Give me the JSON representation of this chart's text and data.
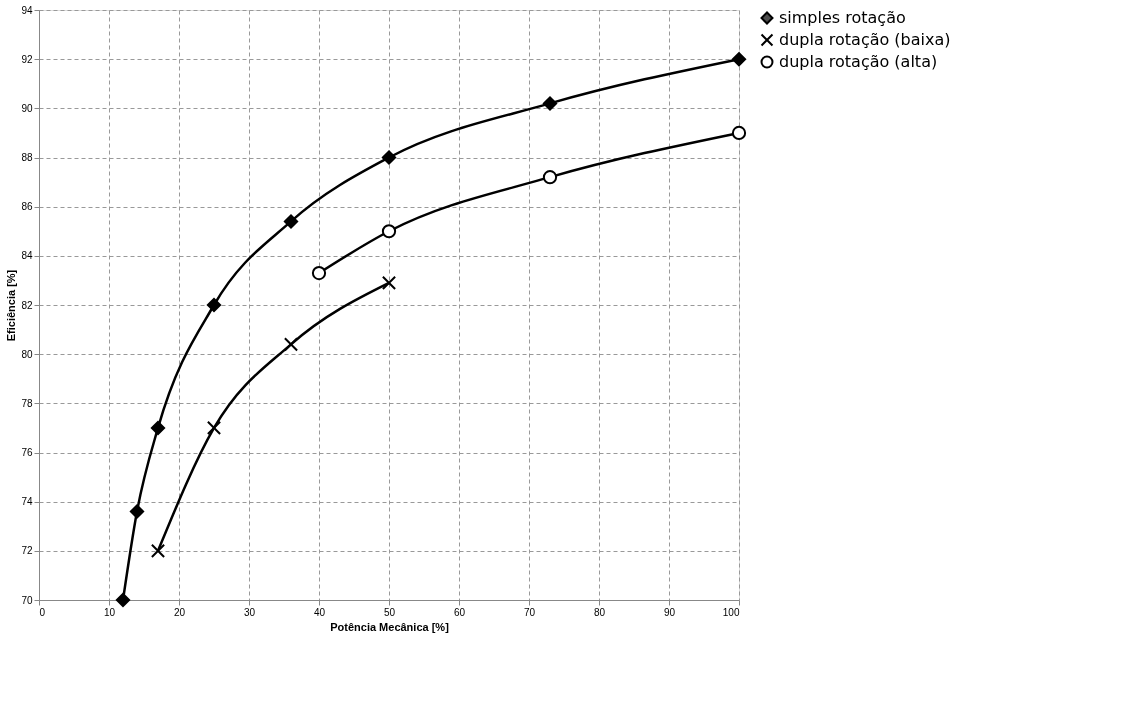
{
  "chart_data": {
    "type": "line",
    "xlabel": "Potência Mecânica [%]",
    "ylabel": "Eficiência [%]",
    "xlim": [
      0,
      100
    ],
    "xticks": [
      0,
      10,
      20,
      30,
      40,
      50,
      60,
      70,
      80,
      90,
      100
    ],
    "ylim": [
      70,
      94
    ],
    "yticks": [
      70,
      72,
      74,
      76,
      78,
      80,
      82,
      84,
      86,
      88,
      90,
      92,
      94
    ],
    "grid": true,
    "legend": "right",
    "line_style": "solid",
    "series": [
      {
        "name": "simples rotação",
        "color": "#000000",
        "marker": "diamond",
        "x": [
          12,
          14,
          17,
          25,
          36,
          50,
          73,
          100
        ],
        "values": [
          70,
          73.6,
          77,
          82,
          85.4,
          88,
          90.2,
          92
        ]
      },
      {
        "name": "dupla rotação (baixa)",
        "color": "#000000",
        "marker": "cross",
        "x": [
          17,
          25,
          36,
          50
        ],
        "values": [
          72,
          77,
          80.4,
          82.9
        ]
      },
      {
        "name": "dupla rotação (alta)",
        "color": "#000000",
        "marker": "circle",
        "x": [
          40,
          50,
          73,
          100
        ],
        "values": [
          83.3,
          85,
          87.2,
          89
        ]
      }
    ]
  }
}
